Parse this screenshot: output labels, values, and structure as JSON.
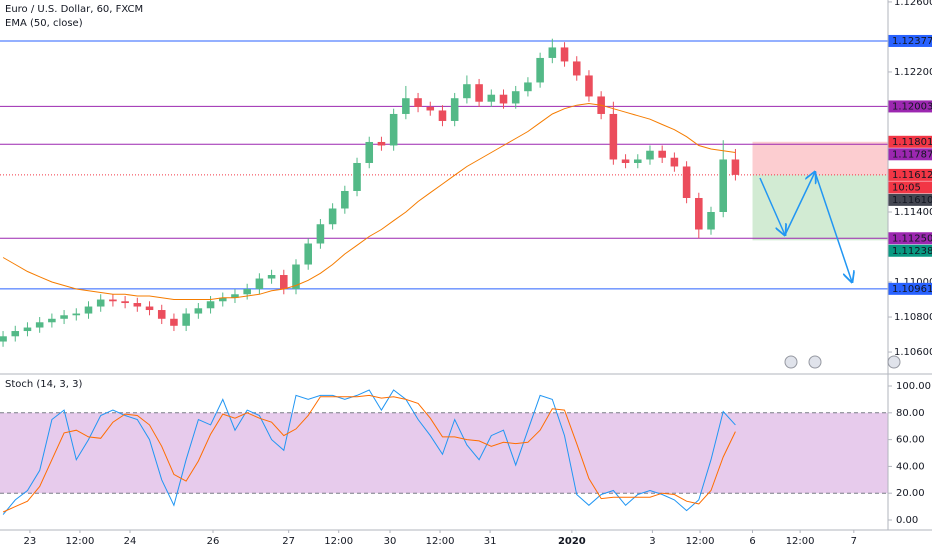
{
  "chart_data": [
    {
      "type": "candlestick",
      "title": "Euro / U.S. Dollar, 60, FXCM",
      "subtitle": "EMA (50, close)",
      "up_color": "#53b987",
      "down_color": "#eb4d5c",
      "open": [
        1.1066,
        1.1069,
        1.1072,
        1.1074,
        1.1077,
        1.1079,
        1.1081,
        1.1082,
        1.1086,
        1.109,
        1.1089,
        1.1088,
        1.1086,
        1.1084,
        1.1079,
        1.1075,
        1.1082,
        1.1085,
        1.1089,
        1.1091,
        1.1093,
        1.1096,
        1.1102,
        1.1104,
        1.1096,
        1.111,
        1.1122,
        1.1133,
        1.1142,
        1.1152,
        1.1168,
        1.118,
        1.1178,
        1.1196,
        1.1205,
        1.12,
        1.1198,
        1.1192,
        1.1205,
        1.1213,
        1.1203,
        1.1207,
        1.1202,
        1.1209,
        1.1214,
        1.1228,
        1.1234,
        1.1226,
        1.1218,
        1.1206,
        1.1196,
        1.117,
        1.1168,
        1.117,
        1.1175,
        1.1171,
        1.1166,
        1.1148,
        1.113,
        1.114,
        1.117
      ],
      "high": [
        1.1072,
        1.1075,
        1.1077,
        1.108,
        1.1082,
        1.1084,
        1.1085,
        1.1089,
        1.1093,
        1.1093,
        1.1092,
        1.1091,
        1.1089,
        1.1087,
        1.1082,
        1.1085,
        1.1088,
        1.1092,
        1.1094,
        1.1096,
        1.1099,
        1.1105,
        1.1107,
        1.1107,
        1.1113,
        1.1125,
        1.1136,
        1.1145,
        1.1155,
        1.1171,
        1.1183,
        1.1183,
        1.1199,
        1.1212,
        1.1208,
        1.1203,
        1.1201,
        1.1208,
        1.1218,
        1.1216,
        1.121,
        1.121,
        1.1212,
        1.1217,
        1.1231,
        1.1239,
        1.1237,
        1.1229,
        1.1221,
        1.1209,
        1.1203,
        1.1173,
        1.1173,
        1.1178,
        1.1178,
        1.1174,
        1.1169,
        1.1151,
        1.1143,
        1.1181,
        1.1176
      ],
      "low": [
        1.1063,
        1.1066,
        1.1069,
        1.1071,
        1.1074,
        1.1076,
        1.1078,
        1.1079,
        1.1083,
        1.1086,
        1.1085,
        1.1083,
        1.1081,
        1.1076,
        1.1072,
        1.1072,
        1.1079,
        1.1082,
        1.1086,
        1.1088,
        1.109,
        1.1093,
        1.1099,
        1.1093,
        1.1093,
        1.1107,
        1.1119,
        1.113,
        1.1139,
        1.1149,
        1.1165,
        1.1175,
        1.1175,
        1.1193,
        1.1197,
        1.1195,
        1.1189,
        1.1189,
        1.1202,
        1.12,
        1.12,
        1.1199,
        1.1199,
        1.1206,
        1.1211,
        1.1225,
        1.1223,
        1.1215,
        1.1203,
        1.1193,
        1.1167,
        1.1165,
        1.1165,
        1.1167,
        1.1168,
        1.1163,
        1.1145,
        1.1125,
        1.1127,
        1.1137,
        1.1158
      ],
      "close": [
        1.1069,
        1.1072,
        1.1074,
        1.1077,
        1.1079,
        1.1081,
        1.1082,
        1.1086,
        1.109,
        1.1089,
        1.1088,
        1.1086,
        1.1084,
        1.1079,
        1.1075,
        1.1082,
        1.1085,
        1.1089,
        1.1091,
        1.1093,
        1.1096,
        1.1102,
        1.1104,
        1.1096,
        1.111,
        1.1122,
        1.1133,
        1.1142,
        1.1152,
        1.1168,
        1.118,
        1.1178,
        1.1196,
        1.1205,
        1.12,
        1.1198,
        1.1192,
        1.1205,
        1.1213,
        1.1203,
        1.1207,
        1.1202,
        1.1209,
        1.1214,
        1.1228,
        1.1234,
        1.1226,
        1.1218,
        1.1206,
        1.1196,
        1.117,
        1.1168,
        1.117,
        1.1175,
        1.1171,
        1.1166,
        1.1148,
        1.113,
        1.114,
        1.117,
        1.11612
      ],
      "series": [
        {
          "color": "#f57c00",
          "values": [
            1.1114,
            1.111,
            1.1106,
            1.1103,
            1.11,
            1.1098,
            1.1096,
            1.1095,
            1.1094,
            1.1093,
            1.1093,
            1.1092,
            1.1092,
            1.1091,
            1.109,
            1.109,
            1.109,
            1.109,
            1.1091,
            1.1091,
            1.1092,
            1.1093,
            1.1095,
            1.1096,
            1.1098,
            1.1101,
            1.1105,
            1.111,
            1.1116,
            1.1121,
            1.1126,
            1.113,
            1.1135,
            1.114,
            1.1146,
            1.1151,
            1.1156,
            1.1161,
            1.1166,
            1.117,
            1.1174,
            1.1178,
            1.1182,
            1.1186,
            1.1191,
            1.1196,
            1.1199,
            1.1201,
            1.1202,
            1.1201,
            1.1199,
            1.1197,
            1.1195,
            1.1193,
            1.119,
            1.1187,
            1.1183,
            1.1178,
            1.1176,
            1.1175,
            1.1174
          ]
        }
      ],
      "xlim": [
        -0.25,
        72.5
      ],
      "xticks": [
        {
          "value": 2.2,
          "label": "23"
        },
        {
          "value": 6.3,
          "label": "12:00"
        },
        {
          "value": 10.4,
          "label": "24"
        },
        {
          "value": 17.2,
          "label": "26"
        },
        {
          "value": 23.4,
          "label": "27"
        },
        {
          "value": 27.5,
          "label": "12:00"
        },
        {
          "value": 31.7,
          "label": "30"
        },
        {
          "value": 35.8,
          "label": "12:00"
        },
        {
          "value": 39.9,
          "label": "31"
        },
        {
          "value": 46.6,
          "label": "2020"
        },
        {
          "value": 53.2,
          "label": "3"
        },
        {
          "value": 57.1,
          "label": "12:00"
        },
        {
          "value": 61.4,
          "label": "6"
        },
        {
          "value": 65.3,
          "label": "12:00"
        },
        {
          "value": 69.7,
          "label": "7"
        }
      ],
      "ylim": [
        1.10486,
        1.12611
      ],
      "yticks": [
        {
          "value": 1.126,
          "label": "1.12600"
        },
        {
          "value": 1.122,
          "label": "1.12200"
        },
        {
          "value": 1.114,
          "label": "1.11400"
        },
        {
          "value": 1.11,
          "label": "1.11000"
        },
        {
          "value": 1.108,
          "label": "1.10800"
        },
        {
          "value": 1.106,
          "label": "1.10600"
        }
      ],
      "levels": [
        {
          "value": 1.12377,
          "label": "1.12377",
          "color": "#2962ff",
          "kind": "line"
        },
        {
          "value": 1.12003,
          "label": "1.12003",
          "color": "#9c27b0",
          "kind": "line"
        },
        {
          "value": 1.11801,
          "label": "1.11801",
          "color": "#f23645",
          "kind": "stop"
        },
        {
          "value": 1.11787,
          "label": "1.11787",
          "color": "#9c27b0",
          "kind": "line"
        },
        {
          "value": 1.11612,
          "label": "1.11612",
          "color": "#f23645",
          "kind": "last",
          "countdown": "10:05"
        },
        {
          "value": 1.1161,
          "label": "1.11610",
          "color": "#434651",
          "kind": "bid"
        },
        {
          "value": 1.1125,
          "label": "1.11250",
          "color": "#9c27b0",
          "kind": "line"
        },
        {
          "value": 1.11238,
          "label": "1.11238",
          "color": "#089981",
          "kind": "target"
        },
        {
          "value": 1.10961,
          "label": "1.10961",
          "color": "#2962ff",
          "kind": "line"
        }
      ]
    },
    {
      "type": "line",
      "title": "Stoch (14, 3, 3)",
      "series": [
        {
          "color": "#2196f3",
          "values": [
            4,
            15,
            22,
            37,
            75,
            82,
            45,
            60,
            78,
            82,
            78,
            75,
            60,
            30,
            11,
            45,
            75,
            71,
            90,
            67,
            82,
            78,
            60,
            52,
            93,
            90,
            93,
            93,
            90,
            93,
            97,
            82,
            97,
            90,
            75,
            63,
            49,
            75,
            56,
            45,
            63,
            67,
            41,
            67,
            93,
            90,
            63,
            19,
            11,
            19,
            22,
            11,
            19,
            22,
            19,
            15,
            7,
            15,
            45,
            81,
            71
          ]
        },
        {
          "color": "#ff6d00",
          "values": [
            6,
            10,
            14,
            25,
            45,
            65,
            67,
            62,
            61,
            73,
            79,
            78,
            71,
            55,
            34,
            29,
            44,
            64,
            79,
            76,
            80,
            76,
            73,
            63,
            68,
            78,
            92,
            92,
            92,
            92,
            93,
            91,
            92,
            90,
            87,
            76,
            62,
            62,
            60,
            59,
            55,
            58,
            57,
            58,
            67,
            83,
            82,
            57,
            31,
            16,
            17,
            17,
            17,
            17,
            20,
            19,
            14,
            12,
            22,
            47,
            66
          ]
        }
      ],
      "band": [
        20,
        80
      ],
      "band_color": "#e1bee7",
      "xlim": [
        -0.25,
        72.5
      ],
      "ylim": [
        -7.46,
        106.72
      ],
      "yticks": [
        {
          "value": 100,
          "label": "100.00"
        },
        {
          "value": 80,
          "label": "80.00"
        },
        {
          "value": 60,
          "label": "60.00"
        },
        {
          "value": 40,
          "label": "40.00"
        },
        {
          "value": 20,
          "label": "20.00"
        },
        {
          "value": 0,
          "label": "0.00"
        }
      ]
    }
  ]
}
